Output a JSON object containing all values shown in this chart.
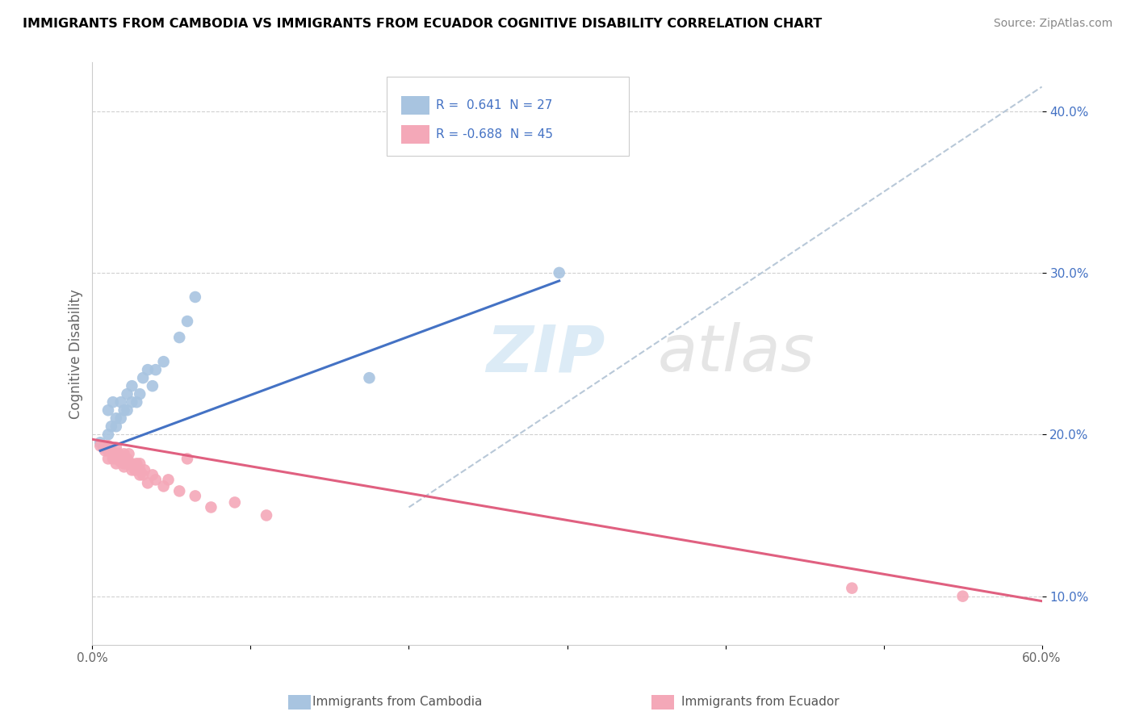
{
  "title": "IMMIGRANTS FROM CAMBODIA VS IMMIGRANTS FROM ECUADOR COGNITIVE DISABILITY CORRELATION CHART",
  "source": "Source: ZipAtlas.com",
  "ylabel": "Cognitive Disability",
  "legend_bottom": [
    "Immigrants from Cambodia",
    "Immigrants from Ecuador"
  ],
  "xlim": [
    0.0,
    0.6
  ],
  "ylim": [
    0.07,
    0.43
  ],
  "xticks": [
    0.0,
    0.1,
    0.2,
    0.3,
    0.4,
    0.5,
    0.6
  ],
  "xtick_labels": [
    "0.0%",
    "",
    "",
    "",
    "",
    "",
    "60.0%"
  ],
  "ytick_labels_right": [
    "10.0%",
    "20.0%",
    "30.0%",
    "40.0%"
  ],
  "ytick_positions_right": [
    0.1,
    0.2,
    0.3,
    0.4
  ],
  "R_cambodia": 0.641,
  "N_cambodia": 27,
  "R_ecuador": -0.688,
  "N_ecuador": 45,
  "color_cambodia": "#a8c4e0",
  "color_ecuador": "#f4a8b8",
  "line_color_cambodia": "#4472c4",
  "line_color_ecuador": "#e06080",
  "line_color_dashed": "#b8c8d8",
  "cambodia_x": [
    0.005,
    0.007,
    0.01,
    0.01,
    0.012,
    0.013,
    0.015,
    0.015,
    0.018,
    0.018,
    0.02,
    0.022,
    0.022,
    0.025,
    0.025,
    0.028,
    0.03,
    0.032,
    0.035,
    0.038,
    0.04,
    0.045,
    0.055,
    0.06,
    0.065,
    0.175,
    0.295
  ],
  "cambodia_y": [
    0.195,
    0.192,
    0.2,
    0.215,
    0.205,
    0.22,
    0.205,
    0.21,
    0.21,
    0.22,
    0.215,
    0.215,
    0.225,
    0.22,
    0.23,
    0.22,
    0.225,
    0.235,
    0.24,
    0.23,
    0.24,
    0.245,
    0.26,
    0.27,
    0.285,
    0.235,
    0.3
  ],
  "ecuador_x": [
    0.005,
    0.008,
    0.008,
    0.01,
    0.01,
    0.01,
    0.012,
    0.013,
    0.013,
    0.015,
    0.015,
    0.015,
    0.015,
    0.017,
    0.018,
    0.018,
    0.02,
    0.02,
    0.02,
    0.02,
    0.022,
    0.022,
    0.023,
    0.025,
    0.025,
    0.027,
    0.028,
    0.03,
    0.03,
    0.03,
    0.032,
    0.033,
    0.035,
    0.038,
    0.04,
    0.045,
    0.048,
    0.055,
    0.06,
    0.065,
    0.075,
    0.09,
    0.11,
    0.48,
    0.55
  ],
  "ecuador_y": [
    0.193,
    0.19,
    0.193,
    0.185,
    0.19,
    0.193,
    0.19,
    0.185,
    0.188,
    0.182,
    0.185,
    0.188,
    0.192,
    0.188,
    0.183,
    0.186,
    0.18,
    0.182,
    0.185,
    0.188,
    0.182,
    0.185,
    0.188,
    0.178,
    0.182,
    0.178,
    0.182,
    0.175,
    0.178,
    0.182,
    0.175,
    0.178,
    0.17,
    0.175,
    0.172,
    0.168,
    0.172,
    0.165,
    0.185,
    0.162,
    0.155,
    0.158,
    0.15,
    0.105,
    0.1
  ],
  "cam_line_x": [
    0.005,
    0.295
  ],
  "cam_line_y": [
    0.19,
    0.295
  ],
  "ecu_line_x": [
    0.0,
    0.6
  ],
  "ecu_line_y": [
    0.197,
    0.097
  ],
  "dash_line_x": [
    0.2,
    0.6
  ],
  "dash_line_y": [
    0.155,
    0.415
  ]
}
